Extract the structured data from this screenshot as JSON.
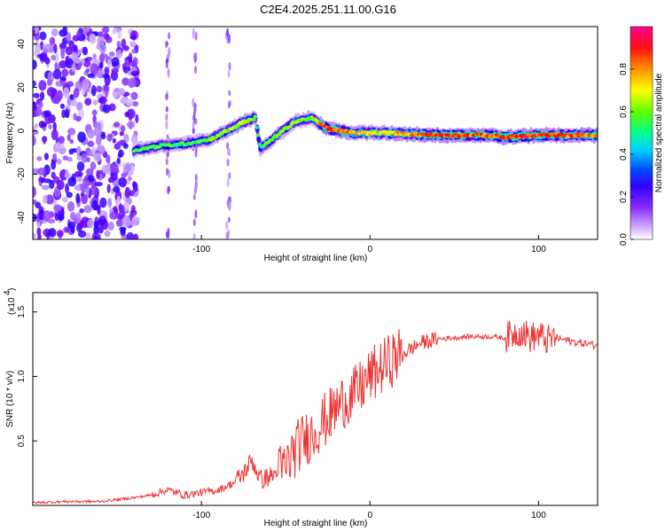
{
  "title": "C2E4.2025.251.11.00.G16",
  "chart_data": [
    {
      "type": "heatmap",
      "xlabel": "Height of straight line (km)",
      "ylabel": "Frequency (Hz)",
      "xlim": [
        -200,
        135
      ],
      "ylim": [
        -50,
        48
      ],
      "xticks": [
        -100,
        0,
        100
      ],
      "yticks": [
        -40,
        -20,
        0,
        20,
        40
      ],
      "xtick_labels": [
        "-100",
        "0",
        "100"
      ],
      "ytick_labels": [
        "-40",
        "-20",
        "0",
        "20",
        "40"
      ],
      "colorbar": {
        "label": "Normalized spectral amplitude",
        "range": [
          0,
          1
        ],
        "ticks": [
          0,
          0.2,
          0.4,
          0.6,
          0.8
        ],
        "tick_labels": [
          "0.0",
          "0.2",
          "0.4",
          "0.6",
          "0.8"
        ],
        "colors": [
          "#ffffff",
          "#b488ff",
          "#6a00ff",
          "#0000ff",
          "#00c8ff",
          "#00ff80",
          "#80ff00",
          "#ffff00",
          "#ff8000",
          "#ff0000",
          "#ff0080"
        ]
      },
      "ridge": [
        {
          "x": -140,
          "y": -9,
          "amp": 0.55
        },
        {
          "x": -125,
          "y": -7,
          "amp": 0.6
        },
        {
          "x": -110,
          "y": -6,
          "amp": 0.55
        },
        {
          "x": -95,
          "y": -4,
          "amp": 0.6
        },
        {
          "x": -85,
          "y": 0,
          "amp": 0.65
        },
        {
          "x": -75,
          "y": 4,
          "amp": 0.7
        },
        {
          "x": -68,
          "y": 6,
          "amp": 0.6
        },
        {
          "x": -65,
          "y": -8,
          "amp": 0.55
        },
        {
          "x": -55,
          "y": -2,
          "amp": 0.6
        },
        {
          "x": -45,
          "y": 4,
          "amp": 0.65
        },
        {
          "x": -35,
          "y": 6,
          "amp": 0.6
        },
        {
          "x": -25,
          "y": 1,
          "amp": 0.95
        },
        {
          "x": -10,
          "y": -1,
          "amp": 0.8
        },
        {
          "x": 10,
          "y": -1,
          "amp": 0.75
        },
        {
          "x": 40,
          "y": -2,
          "amp": 0.9
        },
        {
          "x": 70,
          "y": -2,
          "amp": 0.85
        },
        {
          "x": 80,
          "y": -3,
          "amp": 0.95
        },
        {
          "x": 100,
          "y": -2,
          "amp": 0.9
        },
        {
          "x": 125,
          "y": -2,
          "amp": 0.85
        }
      ]
    },
    {
      "type": "line",
      "xlabel": "Height of straight line (km)",
      "ylabel": "SNR (10 * v/v)",
      "ylabel_scale": "(x10",
      "ylabel_exponent": "4",
      "xlim": [
        -200,
        135
      ],
      "ylim": [
        0,
        1.65
      ],
      "xticks": [
        -100,
        0,
        100
      ],
      "yticks": [
        0.5,
        1.0,
        1.5
      ],
      "xtick_labels": [
        "-100",
        "0",
        "100"
      ],
      "ytick_labels": [
        "0.5",
        "1.0",
        "1.5"
      ],
      "series": [
        {
          "name": "SNR",
          "color": "#ee3333",
          "x": [
            -200,
            -180,
            -160,
            -140,
            -130,
            -120,
            -110,
            -100,
            -90,
            -80,
            -75,
            -70,
            -65,
            -60,
            -55,
            -50,
            -45,
            -40,
            -35,
            -30,
            -25,
            -20,
            -15,
            -10,
            -5,
            0,
            5,
            10,
            15,
            20,
            25,
            30,
            40,
            50,
            60,
            70,
            80,
            85,
            90,
            95,
            100,
            105,
            110,
            120,
            130,
            135
          ],
          "y": [
            0.02,
            0.03,
            0.03,
            0.06,
            0.08,
            0.12,
            0.08,
            0.1,
            0.12,
            0.18,
            0.25,
            0.35,
            0.2,
            0.22,
            0.25,
            0.3,
            0.42,
            0.5,
            0.55,
            0.62,
            0.68,
            0.75,
            0.82,
            0.85,
            0.92,
            1.0,
            1.05,
            1.1,
            1.15,
            1.18,
            1.22,
            1.26,
            1.29,
            1.3,
            1.31,
            1.31,
            1.3,
            1.33,
            1.35,
            1.3,
            1.32,
            1.28,
            1.3,
            1.27,
            1.25,
            1.24
          ]
        }
      ]
    }
  ]
}
